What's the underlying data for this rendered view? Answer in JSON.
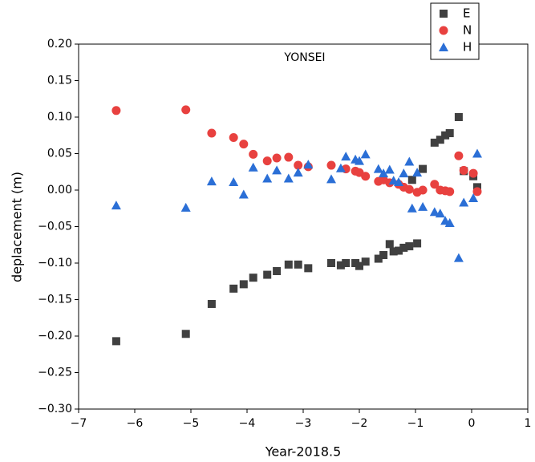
{
  "chart_data": {
    "type": "scatter",
    "title": "YONSEI",
    "x_label": "Year-2018.5",
    "y_label": "deplacement (m)",
    "xlim": [
      -7,
      1
    ],
    "xticks": [
      {
        "value": -7,
        "label": "−7"
      },
      {
        "value": -6,
        "label": "−6"
      },
      {
        "value": -5,
        "label": "−5"
      },
      {
        "value": -4,
        "label": "−4"
      },
      {
        "value": -3,
        "label": "−3"
      },
      {
        "value": -2,
        "label": "−2"
      },
      {
        "value": -1,
        "label": "−1"
      },
      0,
      1
    ],
    "ylim": [
      -0.3,
      0.2
    ],
    "yticks": [
      {
        "value": -0.3,
        "label": "−0.30"
      },
      {
        "value": -0.25,
        "label": "−0.25"
      },
      {
        "value": -0.2,
        "label": "−0.20"
      },
      {
        "value": -0.15,
        "label": "−0.15"
      },
      {
        "value": -0.1,
        "label": "−0.10"
      },
      {
        "value": -0.05,
        "label": "−0.05"
      },
      {
        "value": 0,
        "label": "0.00"
      },
      {
        "value": 0.05,
        "label": "0.05"
      },
      {
        "value": 0.1,
        "label": "0.10"
      },
      {
        "value": 0.15,
        "label": "0.15"
      },
      {
        "value": 0.2,
        "label": "0.20"
      }
    ],
    "legend": "top-right",
    "series": [
      {
        "name": "E",
        "marker": "square",
        "color": "#404040",
        "x": [
          -6.33,
          -5.09,
          -4.63,
          -4.24,
          -4.06,
          -3.89,
          -3.64,
          -3.47,
          -3.26,
          -3.09,
          -2.91,
          -2.5,
          -2.33,
          -2.24,
          -2.07,
          -2.0,
          -1.89,
          -1.66,
          -1.57,
          -1.46,
          -1.39,
          -1.3,
          -1.21,
          -1.11,
          -0.97,
          -0.87,
          -1.06,
          -0.66,
          -0.56,
          -0.47,
          -0.39,
          -0.23,
          -0.14,
          0.03,
          0.1
        ],
        "values": [
          -0.207,
          -0.197,
          -0.156,
          -0.135,
          -0.129,
          -0.12,
          -0.116,
          -0.111,
          -0.102,
          -0.102,
          -0.107,
          -0.1,
          -0.103,
          -0.1,
          -0.1,
          -0.104,
          -0.098,
          -0.094,
          -0.089,
          -0.074,
          -0.084,
          -0.083,
          -0.079,
          -0.077,
          -0.073,
          0.029,
          0.014,
          0.065,
          0.069,
          0.075,
          0.078,
          0.1,
          0.026,
          0.019,
          0.004
        ]
      },
      {
        "name": "N",
        "marker": "circle",
        "color": "#e8413f",
        "x": [
          -6.33,
          -5.09,
          -4.63,
          -4.24,
          -4.06,
          -3.89,
          -3.64,
          -3.47,
          -3.26,
          -3.09,
          -2.91,
          -2.5,
          -2.24,
          -2.07,
          -2.0,
          -1.89,
          -1.66,
          -1.57,
          -1.46,
          -1.3,
          -1.21,
          -1.11,
          -0.97,
          -0.87,
          -0.66,
          -0.56,
          -0.47,
          -0.39,
          -0.23,
          -0.14,
          0.03,
          0.1
        ],
        "values": [
          0.109,
          0.11,
          0.078,
          0.072,
          0.063,
          0.049,
          0.04,
          0.044,
          0.045,
          0.034,
          0.032,
          0.034,
          0.029,
          0.026,
          0.024,
          0.019,
          0.012,
          0.014,
          0.01,
          0.008,
          0.004,
          0.001,
          -0.003,
          0.0,
          0.008,
          0.0,
          -0.001,
          -0.002,
          0.047,
          0.027,
          0.023,
          -0.002
        ]
      },
      {
        "name": "H",
        "marker": "triangle",
        "color": "#2b6fd6",
        "x": [
          -6.33,
          -5.09,
          -4.63,
          -4.24,
          -4.06,
          -3.89,
          -3.64,
          -3.47,
          -3.26,
          -3.09,
          -2.91,
          -2.5,
          -2.33,
          -2.24,
          -2.07,
          -2.0,
          -1.89,
          -1.66,
          -1.57,
          -1.46,
          -1.39,
          -1.3,
          -1.21,
          -1.11,
          -1.06,
          -0.97,
          -0.87,
          -0.66,
          -0.56,
          -0.47,
          -0.39,
          -0.23,
          -0.14,
          0.03,
          0.1
        ],
        "values": [
          -0.021,
          -0.024,
          0.012,
          0.011,
          -0.006,
          0.031,
          0.016,
          0.027,
          0.016,
          0.024,
          0.035,
          0.015,
          0.03,
          0.046,
          0.042,
          0.04,
          0.049,
          0.029,
          0.023,
          0.028,
          0.013,
          0.011,
          0.023,
          0.039,
          -0.025,
          0.024,
          -0.023,
          -0.03,
          -0.032,
          -0.042,
          -0.045,
          -0.093,
          -0.017,
          -0.011,
          0.05
        ]
      }
    ]
  }
}
